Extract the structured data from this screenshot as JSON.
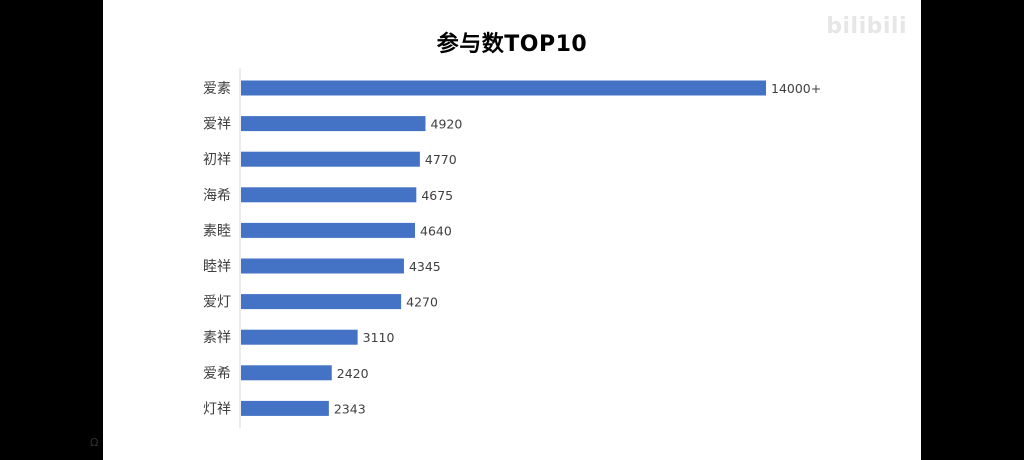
{
  "watermark": "bilibili",
  "chart_data": {
    "type": "bar",
    "orientation": "horizontal",
    "title": "参与数TOP10",
    "categories": [
      "爱素",
      "爱祥",
      "初祥",
      "海希",
      "素睦",
      "睦祥",
      "爱灯",
      "素祥",
      "爱希",
      "灯祥"
    ],
    "values": [
      14000,
      4920,
      4770,
      4675,
      4640,
      4345,
      4270,
      3110,
      2420,
      2343
    ],
    "value_labels": [
      "14000+",
      "4920",
      "4770",
      "4675",
      "4640",
      "4345",
      "4270",
      "3110",
      "2420",
      "2343"
    ],
    "xlim": [
      0,
      14400
    ],
    "bar_color": "#4472c4",
    "grid": false,
    "legend": "none"
  }
}
